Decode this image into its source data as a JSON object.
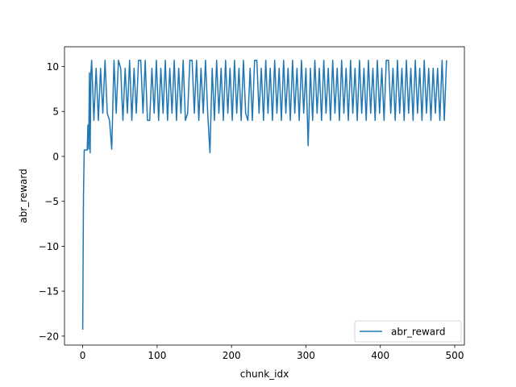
{
  "chart_data": {
    "type": "line",
    "x_label": "chunk_idx",
    "y_label": "abr_reward",
    "x": [
      0,
      1,
      2,
      4,
      6,
      7,
      8,
      9,
      10,
      11,
      12,
      15,
      18,
      21,
      24,
      27,
      30,
      33,
      36,
      39,
      42,
      45,
      48,
      51,
      54,
      57,
      60,
      63,
      66,
      69,
      72,
      75,
      78,
      81,
      84,
      87,
      90,
      93,
      96,
      99,
      102,
      105,
      108,
      111,
      114,
      117,
      120,
      123,
      126,
      129,
      132,
      135,
      138,
      141,
      144,
      147,
      150,
      153,
      156,
      159,
      162,
      165,
      168,
      171,
      174,
      177,
      180,
      183,
      186,
      189,
      192,
      195,
      198,
      201,
      204,
      207,
      210,
      213,
      216,
      219,
      222,
      225,
      228,
      231,
      234,
      237,
      240,
      243,
      246,
      249,
      252,
      255,
      258,
      261,
      264,
      267,
      270,
      273,
      276,
      279,
      282,
      285,
      288,
      291,
      294,
      297,
      300,
      303,
      306,
      309,
      312,
      315,
      318,
      321,
      324,
      327,
      330,
      333,
      336,
      339,
      342,
      345,
      348,
      351,
      354,
      357,
      360,
      363,
      366,
      369,
      372,
      375,
      378,
      381,
      384,
      387,
      390,
      393,
      396,
      399,
      402,
      405,
      408,
      411,
      414,
      417,
      420,
      423,
      426,
      429,
      432,
      435,
      438,
      441,
      444,
      447,
      450,
      453,
      456,
      459,
      462,
      465,
      468,
      471,
      474,
      477,
      480,
      483,
      486,
      489
    ],
    "series": [
      {
        "name": "abr_reward",
        "color": "#1f77b4",
        "values": [
          -19.3,
          -4.5,
          0.7,
          0.7,
          0.7,
          3.5,
          0.8,
          9.3,
          0.4,
          9.3,
          10.7,
          4,
          9.8,
          4,
          9.8,
          4.8,
          10.7,
          4.8,
          4,
          0.8,
          10.7,
          4.8,
          10.7,
          9.8,
          4,
          9.8,
          4.8,
          10.7,
          4,
          9.8,
          4.8,
          10.7,
          10.7,
          4.8,
          10.7,
          4,
          4,
          9.8,
          4.8,
          10.7,
          4,
          9.8,
          4.8,
          10.7,
          4,
          9.8,
          4.8,
          10.7,
          4,
          9.8,
          4.8,
          10.7,
          4,
          4.8,
          10.7,
          10.7,
          4.8,
          10.7,
          4,
          9.8,
          4.8,
          10.7,
          4.8,
          0.4,
          9.8,
          4,
          10.7,
          4.8,
          9.8,
          4,
          10.7,
          4.8,
          9.8,
          4,
          10.7,
          4.8,
          9.8,
          4,
          10.7,
          4.8,
          4,
          9.8,
          4,
          10.7,
          10.7,
          4.8,
          9.8,
          4,
          10.7,
          4.8,
          9.8,
          4,
          10.7,
          4.8,
          9.8,
          4,
          10.7,
          4.8,
          9.8,
          4,
          10.7,
          4.8,
          9.8,
          4,
          10.7,
          4.8,
          9.8,
          1.2,
          9.8,
          4,
          10.7,
          4.8,
          9.8,
          4,
          10.7,
          4.8,
          9.8,
          4,
          10.7,
          4.8,
          9.8,
          4,
          10.7,
          4.8,
          9.8,
          4,
          10.7,
          4.8,
          9.8,
          4,
          10.7,
          4.8,
          9.8,
          4,
          10.7,
          4.8,
          9.8,
          4,
          10.7,
          4.8,
          9.8,
          4,
          10.7,
          10.7,
          4.8,
          9.8,
          4,
          10.7,
          4.8,
          9.8,
          4,
          10.7,
          4.8,
          9.8,
          4,
          10.7,
          4.8,
          9.8,
          4,
          10.7,
          4.8,
          9.8,
          4,
          9.8,
          4.8,
          9.8,
          4,
          10.7,
          4,
          10.7
        ]
      }
    ],
    "xlim": [
      -24.5,
      513
    ],
    "ylim": [
      -21,
      12.2
    ],
    "xticks": [
      0,
      100,
      200,
      300,
      400,
      500
    ],
    "yticks": [
      {
        "value": -20,
        "label": "−20"
      },
      {
        "value": -15,
        "label": "−15"
      },
      {
        "value": -10,
        "label": "−10"
      },
      {
        "value": -5,
        "label": "−5"
      },
      0,
      5,
      10
    ],
    "legend": "lower right"
  }
}
